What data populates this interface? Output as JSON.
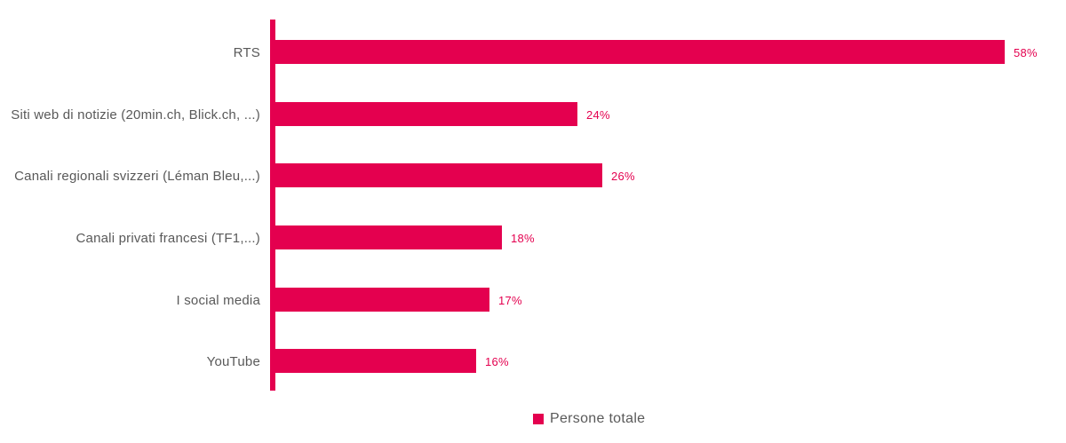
{
  "chart_data": {
    "type": "bar",
    "orientation": "horizontal",
    "title": "",
    "xlabel": "",
    "ylabel": "",
    "categories": [
      "RTS",
      "Siti web di notizie (20min.ch, Blick.ch, ...)",
      "Canali regionali svizzeri (Léman Bleu,...)",
      "Canali privati francesi (TF1,...)",
      "I social media",
      "YouTube"
    ],
    "series": [
      {
        "name": "Persone totale",
        "values": [
          58,
          24,
          26,
          18,
          17,
          16
        ],
        "value_labels": [
          "58%",
          "24%",
          "26%",
          "18%",
          "17%",
          "16%"
        ]
      }
    ],
    "xlim": [
      0,
      62
    ],
    "grid": false,
    "legend_position": "bottom-center",
    "colors": {
      "bar": "#e4004f",
      "axis": "#e4004f",
      "value_label": "#e4004f",
      "category_label": "#595959",
      "legend_text": "#595959"
    }
  },
  "legend": {
    "items": [
      {
        "label": "Persone totale",
        "color": "#e4004f"
      }
    ]
  }
}
